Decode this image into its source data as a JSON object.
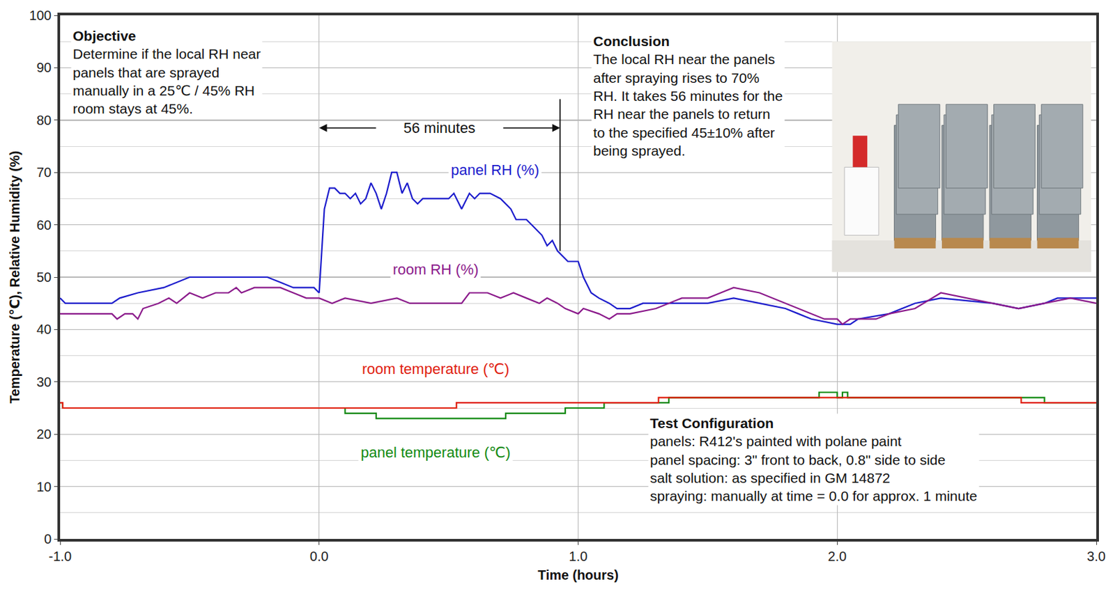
{
  "chart_data": {
    "type": "line",
    "x_label": "Time (hours)",
    "y_label": "Temperature (℃), Relative Humidity (%)",
    "xlim": [
      -1,
      3
    ],
    "ylim": [
      0,
      100
    ],
    "xticks": [
      {
        "value": -1,
        "label": "-1.0"
      },
      {
        "value": 0,
        "label": "0.0"
      },
      {
        "value": 1,
        "label": "1.0"
      },
      {
        "value": 2,
        "label": "2.0"
      },
      {
        "value": 3,
        "label": "3.0"
      }
    ],
    "yticks": [
      0,
      10,
      20,
      30,
      40,
      50,
      60,
      70,
      80,
      90,
      100
    ],
    "grid": true,
    "series": [
      {
        "name": "panel RH (%)",
        "color": "#1c1ccc",
        "label": {
          "x": 0.68,
          "y": 70.5
        },
        "x": [
          -1.0,
          -0.98,
          -0.8,
          -0.77,
          -0.7,
          -0.6,
          -0.5,
          -0.2,
          -0.15,
          -0.1,
          -0.02,
          0,
          0.02,
          0.04,
          0.06,
          0.08,
          0.1,
          0.12,
          0.14,
          0.16,
          0.18,
          0.2,
          0.22,
          0.24,
          0.26,
          0.28,
          0.3,
          0.32,
          0.34,
          0.36,
          0.38,
          0.4,
          0.45,
          0.5,
          0.52,
          0.55,
          0.58,
          0.6,
          0.62,
          0.66,
          0.7,
          0.72,
          0.74,
          0.76,
          0.8,
          0.82,
          0.84,
          0.86,
          0.88,
          0.9,
          0.92,
          0.94,
          0.96,
          1.0,
          1.02,
          1.05,
          1.08,
          1.12,
          1.15,
          1.2,
          1.25,
          1.5,
          1.6,
          1.7,
          1.8,
          1.85,
          1.9,
          2.0,
          2.05,
          2.08,
          2.2,
          2.3,
          2.4,
          2.6,
          2.7,
          2.8,
          2.85,
          3.0
        ],
        "values": [
          46,
          45,
          45,
          46,
          47,
          48,
          50,
          50,
          49,
          48,
          48,
          47,
          63,
          67,
          67,
          66,
          66,
          65,
          66,
          64,
          65,
          68,
          66,
          63,
          66,
          70,
          70,
          66,
          68,
          65,
          64,
          65,
          65,
          65,
          66,
          63,
          66,
          65,
          66,
          66,
          65,
          64,
          63,
          61,
          61,
          60,
          59,
          58,
          56,
          57,
          55,
          54,
          53,
          53,
          50,
          47,
          46,
          45,
          44,
          44,
          45,
          45,
          46,
          45,
          44,
          43,
          42,
          41,
          41,
          42,
          43,
          45,
          46,
          45,
          44,
          45,
          46,
          46
        ]
      },
      {
        "name": "room RH (%)",
        "color": "#8b1a8b",
        "label": {
          "x": 0.45,
          "y": 51.5
        },
        "x": [
          -1.0,
          -0.8,
          -0.78,
          -0.75,
          -0.72,
          -0.7,
          -0.68,
          -0.62,
          -0.58,
          -0.55,
          -0.5,
          -0.45,
          -0.4,
          -0.35,
          -0.32,
          -0.3,
          -0.25,
          -0.15,
          -0.1,
          -0.05,
          0,
          0.05,
          0.1,
          0.2,
          0.3,
          0.35,
          0.4,
          0.5,
          0.55,
          0.58,
          0.65,
          0.7,
          0.75,
          0.8,
          0.85,
          0.88,
          0.92,
          0.95,
          1.0,
          1.02,
          1.08,
          1.12,
          1.15,
          1.2,
          1.3,
          1.4,
          1.5,
          1.55,
          1.6,
          1.7,
          1.75,
          1.8,
          1.85,
          1.9,
          1.95,
          2.0,
          2.02,
          2.05,
          2.15,
          2.2,
          2.3,
          2.4,
          2.5,
          2.6,
          2.7,
          2.8,
          2.9,
          3.0
        ],
        "values": [
          43,
          43,
          42,
          43,
          43,
          42,
          44,
          45,
          46,
          45,
          47,
          46,
          47,
          47,
          48,
          47,
          48,
          48,
          47,
          46,
          46,
          45,
          46,
          45,
          46,
          45,
          45,
          45,
          45,
          47,
          47,
          46,
          47,
          46,
          45,
          46,
          45,
          44,
          43,
          44,
          43,
          42,
          43,
          43,
          44,
          46,
          46,
          47,
          48,
          47,
          46,
          45,
          44,
          43,
          42,
          42,
          41,
          42,
          42,
          43,
          44,
          47,
          46,
          45,
          44,
          45,
          46,
          45
        ]
      },
      {
        "name": "panel temperature (℃)",
        "color": "#128a12",
        "line_style": "step",
        "label": {
          "x": 0.45,
          "y": 16.5
        },
        "x": [
          -1.0,
          -0.99,
          0.1,
          0.22,
          0.72,
          0.95,
          1.1,
          1.35,
          1.93,
          2.0,
          2.02,
          2.04,
          2.8,
          3.0
        ],
        "values": [
          26,
          25,
          24,
          23,
          24,
          25,
          26,
          27,
          28,
          27,
          28,
          27,
          26,
          26
        ]
      },
      {
        "name": "room temperature (℃)",
        "color": "#e0200f",
        "line_style": "step",
        "label": {
          "x": 0.45,
          "y": 32.5
        },
        "x": [
          -1.0,
          -0.99,
          0.53,
          1.31,
          2.71,
          3.0
        ],
        "values": [
          26,
          25,
          26,
          27,
          26,
          26
        ]
      }
    ],
    "span": {
      "text": "56 minutes",
      "from": 0,
      "to": 0.93,
      "y": 78.5,
      "line_y": [
        55,
        84
      ]
    },
    "notes": [
      {
        "title": "Objective",
        "x": -0.96,
        "y": 98,
        "lines": [
          "Determine if the local RH near",
          "panels that are sprayed",
          "manually in a 25℃ / 45% RH",
          "room stays at 45%."
        ]
      },
      {
        "title": "Conclusion",
        "x": 1.05,
        "y": 97,
        "lines": [
          "The local RH near the panels",
          "after spraying rises to 70%",
          "RH. It takes 56 minutes for the",
          "RH near the panels to return",
          "to the specified 45±10% after",
          "being sprayed."
        ]
      },
      {
        "title": "Test Configuration",
        "x": 1.27,
        "y": 24,
        "lines": [
          "panels: R412's painted with polane paint",
          "panel spacing: 3\" front to back, 0.8\" side to side",
          "salt solution: as specified in GM 14872",
          "spraying: manually at time = 0.0 for approx. 1 minute"
        ]
      }
    ]
  }
}
